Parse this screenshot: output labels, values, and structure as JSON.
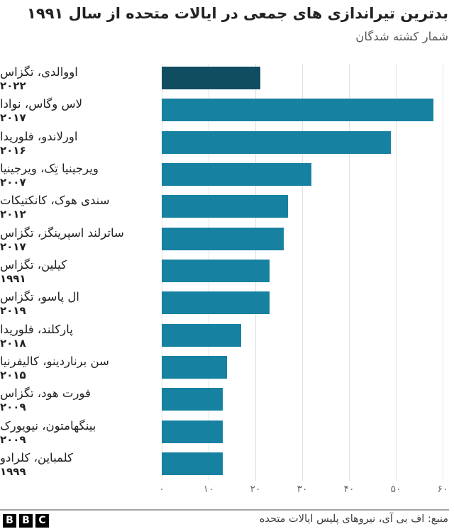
{
  "header": {
    "title": "بدترین تیراندازی های جمعی در ایالات متحده از سال ۱۹۹۱",
    "subtitle": "شمار کشته شدگان"
  },
  "chart_data": {
    "type": "bar",
    "orientation": "horizontal",
    "title": "بدترین تیراندازی های جمعی در ایالات متحده از سال ۱۹۹۱",
    "ylabel": "شمار کشته شدگان",
    "categories": [
      "اووالدی، تگزاس",
      "لاس وگاس، نوادا",
      "اورلاندو، فلوریدا",
      "ویرجینیا تِک، ویرجینیا",
      "سندی هوک، کانکتیکات",
      "ساترلند اسپرینگز، تگزاس",
      "کیلین، تگزاس",
      "ال پاسو، تگزاس",
      "پارکلند، فلوریدا",
      "سن برناردینو، کالیفرنیا",
      "فورت هود، تگزاس",
      "بینگهامتون، نیویورک",
      "کلمباین، کلرادو"
    ],
    "years": [
      "۲۰۲۲",
      "۲۰۱۷",
      "۲۰۱۶",
      "۲۰۰۷",
      "۲۰۱۲",
      "۲۰۱۷",
      "۱۹۹۱",
      "۲۰۱۹",
      "۲۰۱۸",
      "۲۰۱۵",
      "۲۰۰۹",
      "۲۰۰۹",
      "۱۹۹۹"
    ],
    "values": [
      21,
      58,
      49,
      32,
      27,
      26,
      23,
      23,
      17,
      14,
      13,
      13,
      13
    ],
    "xlim": [
      0,
      60
    ],
    "x_tick_values": [
      0,
      10,
      20,
      30,
      40,
      50,
      60
    ],
    "x_tick_labels": [
      "۰",
      "۱۰",
      "۲۰",
      "۳۰",
      "۴۰",
      "۵۰",
      "۶۰"
    ],
    "grid": "vertical",
    "highlight_index": 0,
    "colors": {
      "bar": "#1681a1",
      "highlight": "#114d61",
      "gridline": "#e2e2e2"
    }
  },
  "footer": {
    "source": "منبع: اف بی آی، نیروهای پلیس ایالات متحده",
    "logo_letters": [
      "B",
      "B",
      "C"
    ]
  }
}
